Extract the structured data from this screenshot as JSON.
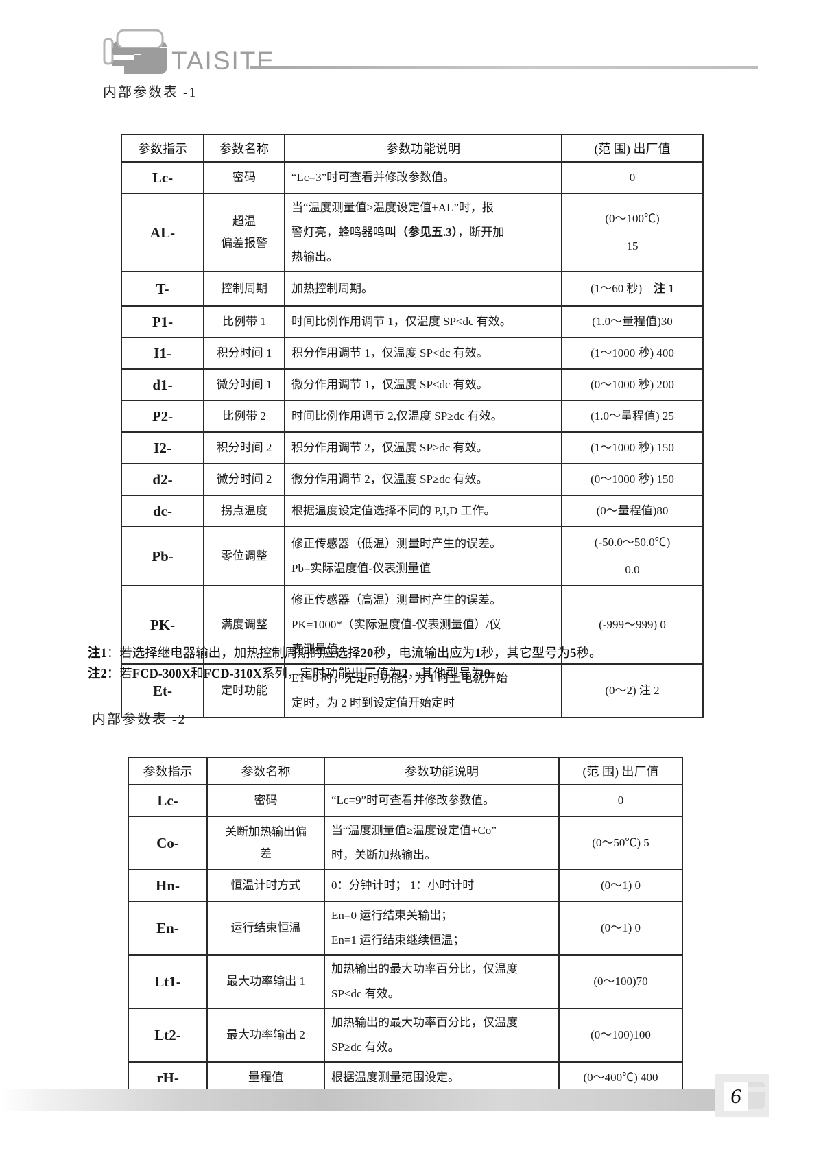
{
  "page": {
    "brand": "TAISITE",
    "page_number": "6"
  },
  "section1": {
    "title": "内部参数表 -1",
    "table": {
      "headers": [
        "参数指示",
        "参数名称",
        "参数功能说明",
        "(范 围) 出厂值"
      ],
      "rows": [
        {
          "key": "Lc",
          "ind": "Lc-",
          "name": [
            "密码"
          ],
          "desc": [
            [
              "“Lc=3”时可查看并修改参数值。"
            ]
          ],
          "range": [
            [
              "0"
            ]
          ]
        },
        {
          "key": "AL",
          "ind": "AL-",
          "name": [
            "超温",
            "偏差报警"
          ],
          "desc": [
            [
              "当“温度测量值>温度设定值+AL”时，报"
            ],
            [
              "警灯亮，蜂鸣器鸣叫",
              {
                "b": "（参见五.3）"
              },
              "，断开加"
            ],
            [
              "热输出。"
            ]
          ],
          "range": [
            [
              "(0～100℃)"
            ],
            [
              "15"
            ]
          ]
        },
        {
          "key": "T",
          "ind": "T-",
          "name": [
            "控制周期"
          ],
          "desc": [
            [
              "加热控制周期。"
            ]
          ],
          "range": [
            [
              "(1～60 秒)　",
              {
                "b": "注 1"
              }
            ]
          ]
        },
        {
          "key": "P1",
          "ind": "P1-",
          "name": [
            "比例带 1"
          ],
          "desc": [
            [
              "时间比例作用调节 1，仅温度 SP<dc 有效。"
            ]
          ],
          "range": [
            [
              "(1.0～量程值)30"
            ]
          ]
        },
        {
          "key": "I1",
          "ind": "I1-",
          "name": [
            "积分时间 1"
          ],
          "desc": [
            [
              "积分作用调节 1，仅温度 SP<dc 有效。"
            ]
          ],
          "range": [
            [
              "(1～1000 秒) 400"
            ]
          ]
        },
        {
          "key": "d1",
          "ind": "d1-",
          "name": [
            "微分时间 1"
          ],
          "desc": [
            [
              "微分作用调节 1，仅温度 SP<dc 有效。"
            ]
          ],
          "range": [
            [
              "(0～1000 秒) 200"
            ]
          ]
        },
        {
          "key": "P2",
          "ind": "P2-",
          "name": [
            "比例带 2"
          ],
          "desc": [
            [
              "时间比例作用调节 2,仅温度 SP≥dc 有效。"
            ]
          ],
          "range": [
            [
              "(1.0～量程值) 25"
            ]
          ]
        },
        {
          "key": "I2",
          "ind": "I2-",
          "name": [
            "积分时间 2"
          ],
          "desc": [
            [
              "积分作用调节 2，仅温度 SP≥dc 有效。"
            ]
          ],
          "range": [
            [
              "(1～1000 秒) 150"
            ]
          ]
        },
        {
          "key": "d2",
          "ind": "d2-",
          "name": [
            "微分时间 2"
          ],
          "desc": [
            [
              "微分作用调节 2，仅温度 SP≥dc 有效。"
            ]
          ],
          "range": [
            [
              "(0～1000 秒) 150"
            ]
          ]
        },
        {
          "key": "dc",
          "ind": "dc-",
          "name": [
            "拐点温度"
          ],
          "desc": [
            [
              "根据温度设定值选择不同的 P,I,D 工作。"
            ]
          ],
          "range": [
            [
              "(0～量程值)80"
            ]
          ]
        },
        {
          "key": "Pb",
          "ind": "Pb-",
          "name": [
            "零位调整"
          ],
          "desc": [
            [
              "修正传感器（低温）测量时产生的误差。"
            ],
            [
              "Pb=实际温度值-仪表测量值"
            ]
          ],
          "range": [
            [
              "(-50.0～50.0℃)"
            ],
            [
              "0.0"
            ]
          ]
        },
        {
          "key": "PK",
          "ind": "PK-",
          "name": [
            "满度调整"
          ],
          "desc": [
            [
              "修正传感器（高温）测量时产生的误差。"
            ],
            [
              "PK=1000*（实际温度值-仪表测量值）/仪"
            ],
            [
              "表测量值"
            ]
          ],
          "range": [
            [
              "(-999～999) 0"
            ]
          ]
        },
        {
          "key": "Et",
          "ind": "Et-",
          "name": [
            "定时功能"
          ],
          "desc": [
            [
              "ET=0 时，无定时功能；为 1 时上电就开始"
            ],
            [
              "定时，为 2 时到设定值开始定时"
            ]
          ],
          "range": [
            [
              "(0～2) 注 2"
            ]
          ]
        }
      ]
    },
    "notes": [
      [
        {
          "b": "注1"
        },
        "：若选择继电器输出，加热控制周期的应选择",
        {
          "b": "20"
        },
        "秒，电流输出应为",
        {
          "b": "1"
        },
        "秒，其它型号为",
        {
          "b": "5"
        },
        "秒。"
      ],
      [
        {
          "b": "注2"
        },
        "：若",
        {
          "b": "FCD-300X"
        },
        "和",
        {
          "b": "FCD-310X"
        },
        "系列，定时功能出厂值为",
        {
          "b": "2"
        },
        "，其他型号为",
        {
          "b": "0"
        },
        "。"
      ]
    ]
  },
  "section2": {
    "title": "内部参数表 -2",
    "table": {
      "headers": [
        "参数指示",
        "参数名称",
        "参数功能说明",
        "(范 围) 出厂值"
      ],
      "rows": [
        {
          "key": "Lc",
          "ind": "Lc-",
          "name": [
            "密码"
          ],
          "desc": [
            [
              "“Lc=9”时可查看并修改参数值。"
            ]
          ],
          "range": [
            [
              "0"
            ]
          ]
        },
        {
          "key": "Co",
          "ind": "Co-",
          "name": [
            "关断加热输出偏",
            "差"
          ],
          "desc": [
            [
              "当“温度测量值≥温度设定值+Co”"
            ],
            [
              "时，关断加热输出。"
            ]
          ],
          "range": [
            [
              "(0～50℃) 5"
            ]
          ]
        },
        {
          "key": "Hn",
          "ind": "Hn-",
          "name": [
            "恒温计时方式"
          ],
          "desc": [
            [
              "0：分钟计时； 1：小时计时"
            ]
          ],
          "range": [
            [
              "(0～1) 0"
            ]
          ]
        },
        {
          "key": "En",
          "ind": "En-",
          "name": [
            "运行结束恒温"
          ],
          "desc": [
            [
              "En=0 运行结束关输出；"
            ],
            [
              "En=1 运行结束继续恒温；"
            ]
          ],
          "range": [
            [
              "(0～1) 0"
            ]
          ]
        },
        {
          "key": "Lt1",
          "ind": "Lt1-",
          "name": [
            "最大功率输出 1"
          ],
          "desc": [
            [
              "加热输出的最大功率百分比，仅温度"
            ],
            [
              "SP<dc 有效。"
            ]
          ],
          "range": [
            [
              "(0～100)70"
            ]
          ]
        },
        {
          "key": "Lt2",
          "ind": "Lt2-",
          "name": [
            "最大功率输出 2"
          ],
          "desc": [
            [
              "加热输出的最大功率百分比，仅温度"
            ],
            [
              "SP≥dc 有效。"
            ]
          ],
          "range": [
            [
              "(0～100)100"
            ]
          ]
        },
        {
          "key": "rH",
          "ind": "rH-",
          "name": [
            "量程值"
          ],
          "desc": [
            [
              "根据温度测量范围设定。"
            ]
          ],
          "range": [
            [
              "(0～400℃) 400"
            ]
          ]
        }
      ]
    }
  },
  "colors": {
    "logo_gray": "#9c9c9c",
    "border": "#2a2a2a",
    "footer_bar": "#c9c9c9"
  }
}
